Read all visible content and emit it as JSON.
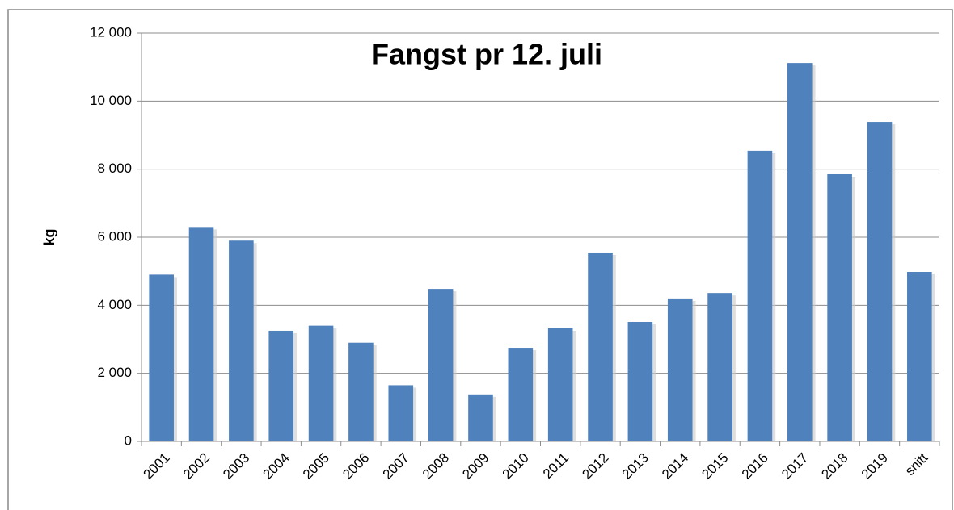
{
  "chart_data": {
    "type": "bar",
    "title": "Fangst pr 12. juli",
    "y_label": "kg",
    "categories": [
      "2001",
      "2002",
      "2003",
      "2004",
      "2005",
      "2006",
      "2007",
      "2008",
      "2009",
      "2010",
      "2011",
      "2012",
      "2013",
      "2014",
      "2015",
      "2016",
      "2017",
      "2018",
      "2019",
      "snitt"
    ],
    "values": [
      4900,
      6300,
      5900,
      3250,
      3400,
      2900,
      1650,
      4480,
      1380,
      2750,
      3320,
      5550,
      3510,
      4200,
      4360,
      8540,
      11120,
      7850,
      9390,
      4980
    ],
    "color": "#4f81bd",
    "ylim": [
      0,
      12000
    ],
    "yticks": [
      0,
      {
        "value": 2000,
        "label": "2 000"
      },
      {
        "value": 4000,
        "label": "4 000"
      },
      {
        "value": 6000,
        "label": "6 000"
      },
      {
        "value": 8000,
        "label": "8 000"
      },
      {
        "value": 10000,
        "label": "10 000"
      },
      {
        "value": 12000,
        "label": "12 000"
      }
    ],
    "grid": true
  }
}
